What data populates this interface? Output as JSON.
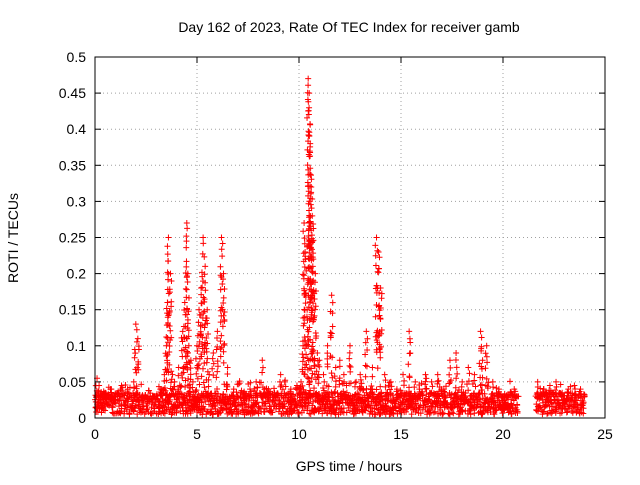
{
  "chart_data": {
    "type": "scatter",
    "title": "Day 162 of 2023, Rate Of TEC Index for receiver gamb",
    "xlabel": "GPS time / hours",
    "ylabel": "ROTI / TECUs",
    "xlim": [
      0,
      25
    ],
    "ylim": [
      0,
      0.5
    ],
    "x_ticks": [
      0,
      5,
      10,
      15,
      20,
      25
    ],
    "y_ticks": [
      0,
      0.05,
      0.1,
      0.15,
      0.2,
      0.25,
      0.3,
      0.35,
      0.4,
      0.45,
      0.5
    ],
    "grid": true,
    "legend": "none",
    "marker": "+",
    "color": "#ff0000",
    "note_points": "approximate sampled envelope of the dense ROTI scatter (x in hours, y in TECU)",
    "x": [
      0.1,
      0.2,
      0.3,
      0.5,
      0.8,
      1.0,
      1.3,
      1.6,
      1.9,
      2.0,
      2.1,
      2.3,
      2.6,
      2.9,
      3.2,
      3.4,
      3.5,
      3.55,
      3.6,
      3.7,
      3.8,
      3.9,
      4.1,
      4.3,
      4.4,
      4.5,
      4.55,
      4.6,
      4.7,
      4.8,
      5.0,
      5.1,
      5.2,
      5.3,
      5.4,
      5.5,
      5.6,
      5.8,
      6.0,
      6.2,
      6.3,
      6.5,
      6.8,
      7.0,
      7.3,
      7.6,
      7.9,
      8.2,
      8.5,
      8.8,
      9.1,
      9.3,
      9.6,
      9.9,
      10.1,
      10.2,
      10.25,
      10.3,
      10.4,
      10.45,
      10.5,
      10.55,
      10.6,
      10.65,
      10.7,
      10.8,
      10.9,
      11.0,
      11.2,
      11.4,
      11.6,
      11.8,
      12.0,
      12.2,
      12.5,
      12.8,
      13.0,
      13.3,
      13.6,
      13.8,
      13.9,
      14.0,
      14.2,
      14.5,
      14.8,
      15.1,
      15.4,
      15.7,
      15.9,
      16.2,
      16.5,
      16.8,
      17.1,
      17.4,
      17.7,
      18.0,
      18.3,
      18.6,
      18.9,
      19.0,
      19.2,
      19.5,
      19.8,
      20.1,
      20.4,
      20.7,
      21.7,
      22.0,
      22.3,
      22.6,
      22.9,
      23.2,
      23.5,
      23.8,
      24.0
    ],
    "y": [
      0.055,
      0.045,
      0.03,
      0.035,
      0.04,
      0.03,
      0.045,
      0.04,
      0.05,
      0.13,
      0.11,
      0.03,
      0.025,
      0.03,
      0.04,
      0.06,
      0.1,
      0.16,
      0.25,
      0.2,
      0.06,
      0.05,
      0.07,
      0.12,
      0.16,
      0.27,
      0.2,
      0.1,
      0.08,
      0.05,
      0.1,
      0.15,
      0.18,
      0.25,
      0.21,
      0.15,
      0.06,
      0.09,
      0.12,
      0.25,
      0.2,
      0.07,
      0.04,
      0.03,
      0.035,
      0.04,
      0.05,
      0.08,
      0.04,
      0.035,
      0.06,
      0.05,
      0.04,
      0.045,
      0.05,
      0.1,
      0.27,
      0.23,
      0.15,
      0.47,
      0.45,
      0.38,
      0.32,
      0.28,
      0.22,
      0.2,
      0.09,
      0.08,
      0.06,
      0.1,
      0.17,
      0.07,
      0.08,
      0.06,
      0.1,
      0.05,
      0.06,
      0.12,
      0.07,
      0.25,
      0.23,
      0.18,
      0.06,
      0.05,
      0.04,
      0.06,
      0.12,
      0.05,
      0.04,
      0.06,
      0.05,
      0.06,
      0.04,
      0.08,
      0.09,
      0.05,
      0.07,
      0.06,
      0.12,
      0.08,
      0.1,
      0.05,
      0.04,
      0.03,
      0.035,
      0.03,
      0.05,
      0.04,
      0.045,
      0.05,
      0.035,
      0.04,
      0.045,
      0.04,
      0.03
    ],
    "x_dense_spans": [
      [
        0.0,
        20.7
      ],
      [
        21.6,
        24.0
      ]
    ],
    "dense_floor_range": [
      0.005,
      0.035
    ]
  }
}
